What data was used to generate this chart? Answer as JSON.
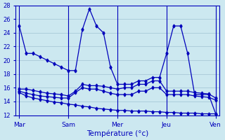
{
  "xlabel": "Température (°c)",
  "background_color": "#cce8f0",
  "line_color": "#0000bb",
  "grid_color": "#a8c8d8",
  "ylim": [
    12,
    28
  ],
  "yticks": [
    12,
    14,
    16,
    18,
    20,
    22,
    24,
    26,
    28
  ],
  "day_labels": [
    "Mar",
    "Sam",
    "Mer",
    "Jeu",
    "Ven"
  ],
  "day_positions": [
    0,
    7,
    14,
    21,
    28
  ],
  "series": [
    {
      "x": [
        0,
        1,
        2,
        3,
        4,
        5,
        6,
        7,
        8,
        9,
        10,
        11,
        12,
        13,
        14,
        15,
        16,
        17,
        18,
        19,
        20,
        21,
        22,
        23,
        24,
        25,
        26,
        27,
        28
      ],
      "y": [
        25.0,
        21.0,
        21.0,
        20.5,
        20.0,
        19.5,
        19.0,
        18.5,
        18.5,
        24.5,
        27.5,
        25.0,
        24.0,
        19.0,
        16.5,
        16.5,
        16.5,
        17.0,
        17.0,
        17.5,
        17.5,
        21.0,
        25.0,
        25.0,
        21.0,
        15.0,
        15.0,
        15.0,
        12.2
      ]
    },
    {
      "x": [
        0,
        1,
        2,
        3,
        4,
        5,
        6,
        7,
        8,
        9,
        10,
        11,
        12,
        13,
        14,
        15,
        16,
        17,
        18,
        19,
        20,
        21,
        22,
        23,
        24,
        25,
        26,
        27,
        28
      ],
      "y": [
        15.8,
        15.8,
        15.6,
        15.4,
        15.2,
        15.1,
        15.0,
        14.8,
        15.5,
        16.5,
        16.3,
        16.3,
        16.2,
        16.0,
        15.8,
        16.0,
        16.0,
        16.5,
        16.5,
        17.0,
        17.0,
        15.5,
        15.5,
        15.5,
        15.5,
        15.3,
        15.2,
        15.1,
        14.5
      ]
    },
    {
      "x": [
        0,
        1,
        2,
        3,
        4,
        5,
        6,
        7,
        8,
        9,
        10,
        11,
        12,
        13,
        14,
        15,
        16,
        17,
        18,
        19,
        20,
        21,
        22,
        23,
        24,
        25,
        26,
        27,
        28
      ],
      "y": [
        15.5,
        15.2,
        15.0,
        14.8,
        14.7,
        14.6,
        14.5,
        14.5,
        15.3,
        16.0,
        15.8,
        15.8,
        15.5,
        15.2,
        15.0,
        15.0,
        15.0,
        15.5,
        15.5,
        16.0,
        16.0,
        15.0,
        15.0,
        15.0,
        15.0,
        14.8,
        14.7,
        14.6,
        14.2
      ]
    },
    {
      "x": [
        0,
        1,
        2,
        3,
        4,
        5,
        6,
        7,
        8,
        9,
        10,
        11,
        12,
        13,
        14,
        15,
        16,
        17,
        18,
        19,
        20,
        21,
        22,
        23,
        24,
        25,
        26,
        27,
        28
      ],
      "y": [
        15.3,
        14.8,
        14.5,
        14.3,
        14.1,
        13.9,
        13.8,
        13.6,
        13.5,
        13.3,
        13.2,
        13.0,
        12.9,
        12.8,
        12.7,
        12.7,
        12.6,
        12.6,
        12.6,
        12.5,
        12.5,
        12.4,
        12.4,
        12.3,
        12.3,
        12.3,
        12.2,
        12.2,
        12.2
      ]
    }
  ]
}
